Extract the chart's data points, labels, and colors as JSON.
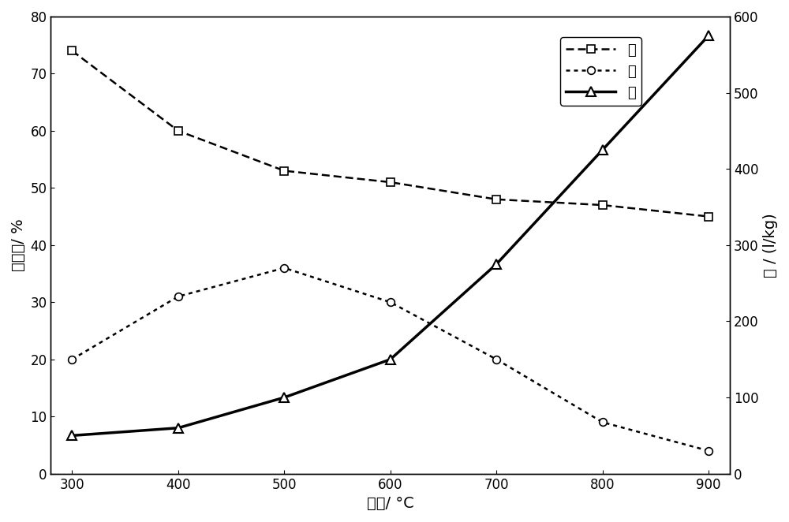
{
  "temperatures": [
    300,
    400,
    500,
    600,
    700,
    800,
    900
  ],
  "char_values": [
    74,
    60,
    53,
    51,
    48,
    47,
    45
  ],
  "liquid_values": [
    20,
    31,
    36,
    30,
    20,
    9,
    4
  ],
  "gas_values": [
    50,
    60,
    100,
    150,
    275,
    425,
    575
  ],
  "left_ylabel": "炒、液/ %",
  "right_ylabel": "气 / (l/kg)",
  "xlabel": "温度/ °C",
  "left_ylim": [
    0,
    80
  ],
  "right_ylim": [
    0,
    600
  ],
  "left_yticks": [
    0,
    10,
    20,
    30,
    40,
    50,
    60,
    70,
    80
  ],
  "right_yticks": [
    0,
    100,
    200,
    300,
    400,
    500,
    600
  ],
  "xlim": [
    280,
    920
  ],
  "xticks": [
    300,
    400,
    500,
    600,
    700,
    800,
    900
  ],
  "legend_char": "炒",
  "legend_liquid": "液",
  "legend_gas": "气",
  "bg_color": "#ffffff"
}
